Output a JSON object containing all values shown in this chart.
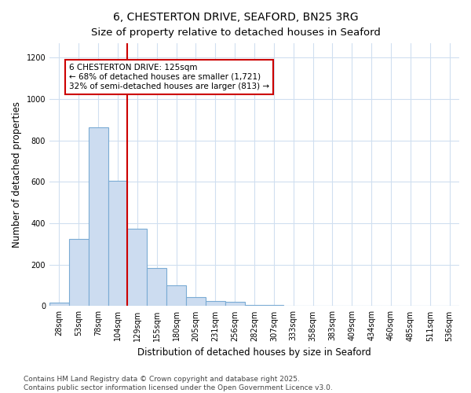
{
  "title": "6, CHESTERTON DRIVE, SEAFORD, BN25 3RG",
  "subtitle": "Size of property relative to detached houses in Seaford",
  "xlabel": "Distribution of detached houses by size in Seaford",
  "ylabel": "Number of detached properties",
  "categories": [
    "28sqm",
    "53sqm",
    "78sqm",
    "104sqm",
    "129sqm",
    "155sqm",
    "180sqm",
    "205sqm",
    "231sqm",
    "256sqm",
    "282sqm",
    "307sqm",
    "333sqm",
    "358sqm",
    "383sqm",
    "409sqm",
    "434sqm",
    "460sqm",
    "485sqm",
    "511sqm",
    "536sqm"
  ],
  "values": [
    15,
    325,
    865,
    605,
    375,
    185,
    100,
    45,
    25,
    20,
    5,
    5,
    0,
    0,
    0,
    0,
    0,
    3,
    0,
    0,
    0
  ],
  "bar_color": "#ccdcf0",
  "bar_edge_color": "#7aabd4",
  "vline_color": "#cc0000",
  "vline_pos": 3.5,
  "annotation_text": "6 CHESTERTON DRIVE: 125sqm\n← 68% of detached houses are smaller (1,721)\n32% of semi-detached houses are larger (813) →",
  "annotation_box_edgecolor": "#cc0000",
  "ylim": [
    0,
    1270
  ],
  "yticks": [
    0,
    200,
    400,
    600,
    800,
    1000,
    1200
  ],
  "background_color": "#ffffff",
  "grid_color": "#d0dff0",
  "footer_text": "Contains HM Land Registry data © Crown copyright and database right 2025.\nContains public sector information licensed under the Open Government Licence v3.0.",
  "title_fontsize": 10,
  "axis_label_fontsize": 8.5,
  "tick_fontsize": 7,
  "annotation_fontsize": 7.5,
  "footer_fontsize": 6.5
}
